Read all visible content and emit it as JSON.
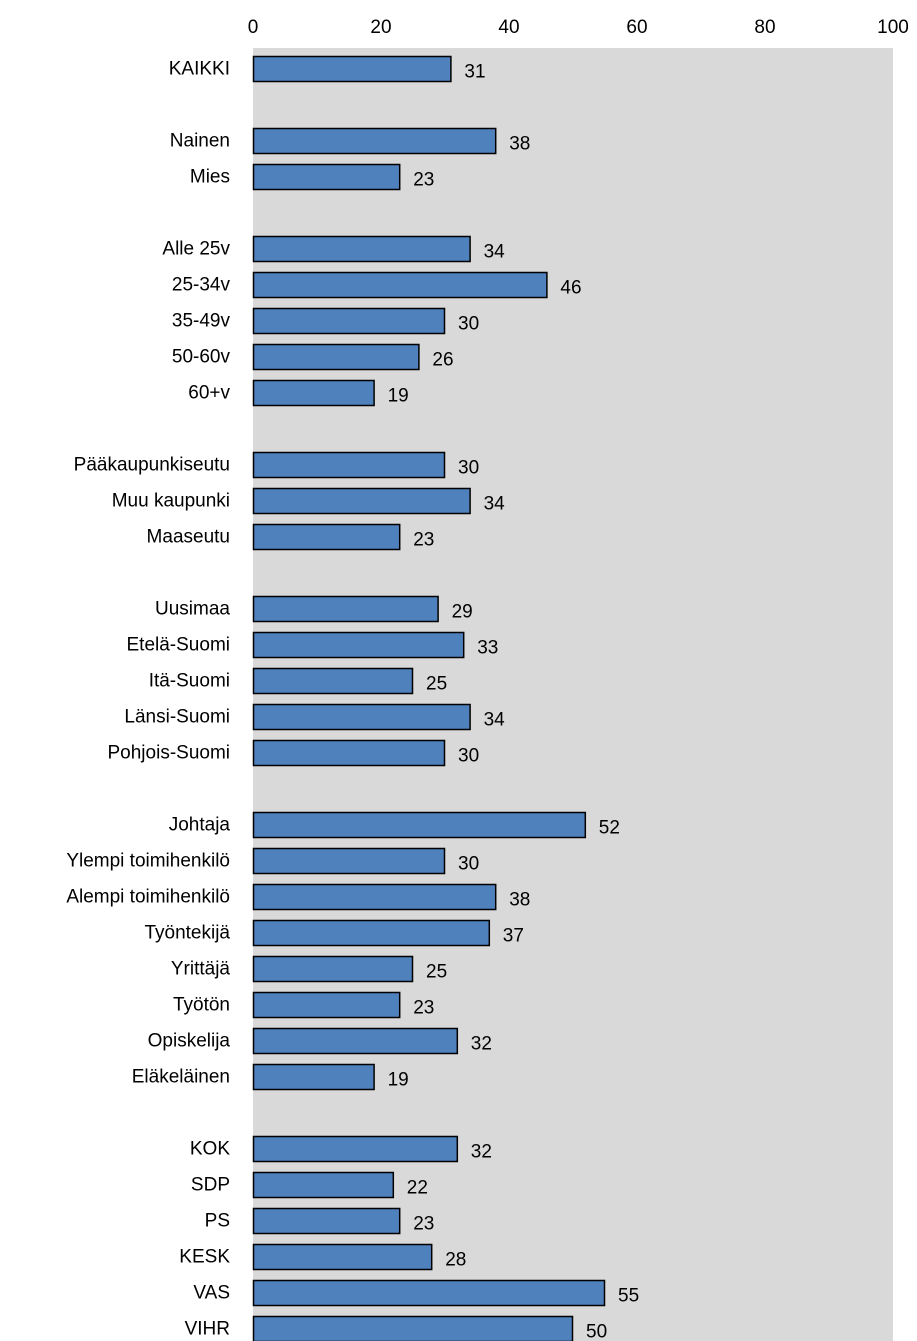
{
  "chart_data": {
    "type": "bar",
    "orientation": "horizontal",
    "title": "",
    "xlabel": "",
    "ylabel": "",
    "xlim": [
      0,
      100
    ],
    "x_ticks": [
      "0",
      "20",
      "40",
      "60",
      "80",
      "100"
    ],
    "x_axis_position": "top",
    "grid": false,
    "plot_background_color": "#d9d9d9",
    "bar_color": "#4f81bd",
    "bar_border_color": "#000000",
    "groups": [
      {
        "categories": [
          "KAIKKI"
        ],
        "values": [
          31
        ]
      },
      {
        "categories": [
          "Nainen",
          "Mies"
        ],
        "values": [
          38,
          23
        ]
      },
      {
        "categories": [
          "Alle 25v",
          "25-34v",
          "35-49v",
          "50-60v",
          "60+v"
        ],
        "values": [
          34,
          46,
          30,
          26,
          19
        ]
      },
      {
        "categories": [
          "Pääkaupunkiseutu",
          "Muu kaupunki",
          "Maaseutu"
        ],
        "values": [
          30,
          34,
          23
        ]
      },
      {
        "categories": [
          "Uusimaa",
          "Etelä-Suomi",
          "Itä-Suomi",
          "Länsi-Suomi",
          "Pohjois-Suomi"
        ],
        "values": [
          29,
          33,
          25,
          34,
          30
        ]
      },
      {
        "categories": [
          "Johtaja",
          "Ylempi toimihenkilö",
          "Alempi toimihenkilö",
          "Työntekijä",
          "Yrittäjä",
          "Työtön",
          "Opiskelija",
          "Eläkeläinen"
        ],
        "values": [
          52,
          30,
          38,
          37,
          25,
          23,
          32,
          19
        ]
      },
      {
        "categories": [
          "KOK",
          "SDP",
          "PS",
          "KESK",
          "VAS",
          "VIHR"
        ],
        "values": [
          32,
          22,
          23,
          28,
          55,
          50
        ]
      }
    ]
  }
}
